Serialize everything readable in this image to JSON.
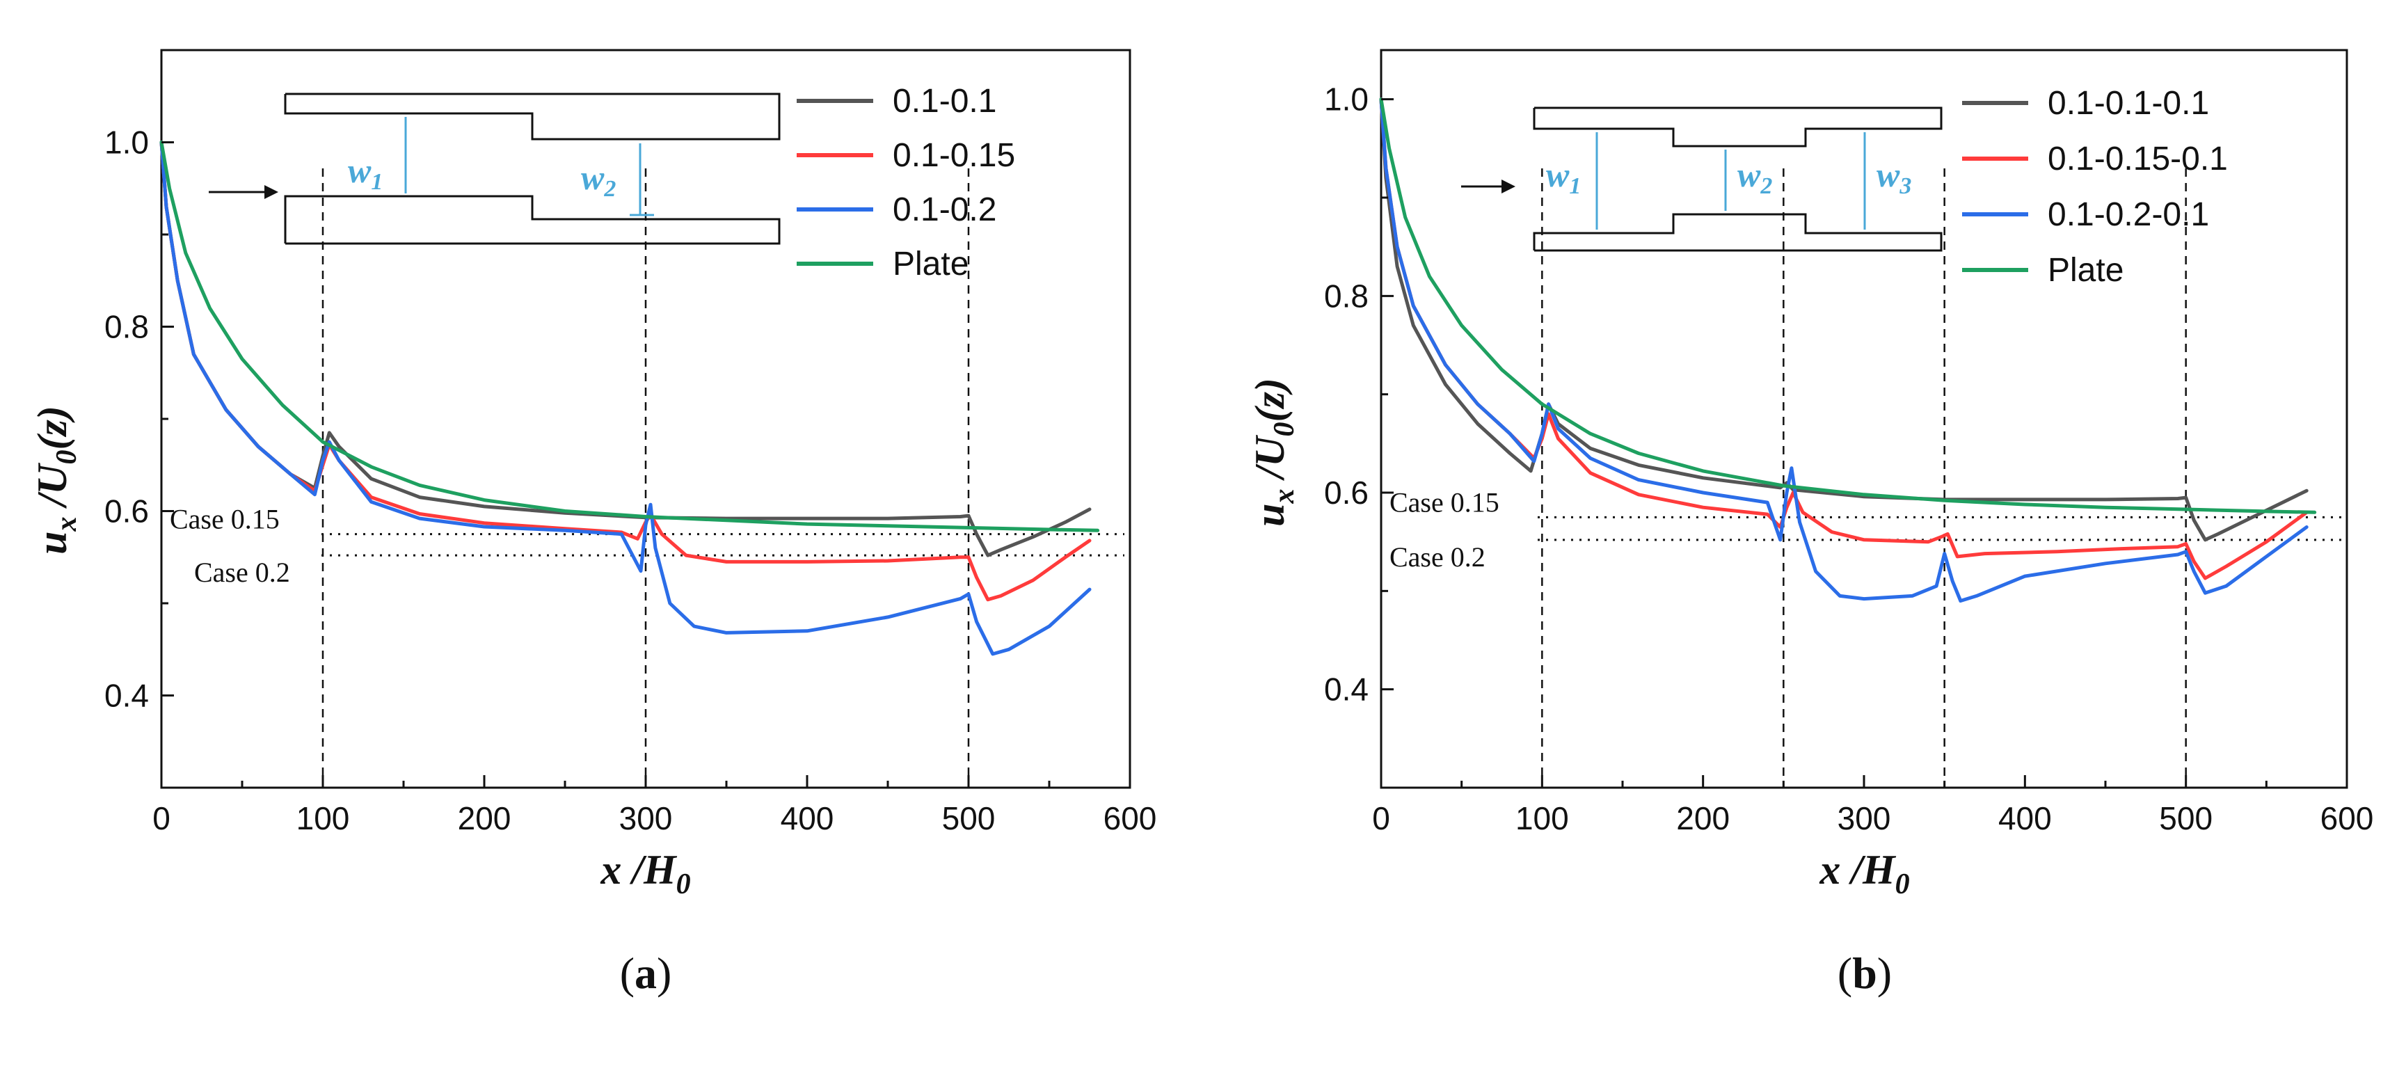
{
  "colors": {
    "gray": "#555555",
    "red": "#ff3b3b",
    "blue": "#2b6de8",
    "green": "#1ea060",
    "dim": "#4aa8d8"
  },
  "chart_data": [
    {
      "type": "line",
      "caption": {
        "open": "(",
        "letter": "a",
        "close": ")"
      },
      "xlabel": {
        "main": "x /H",
        "sub": "0"
      },
      "ylabel": {
        "main": "u",
        "sub1": "x",
        "mid": " /U",
        "sub2": "0",
        "tail": "(z)"
      },
      "xlim": [
        0,
        600
      ],
      "ylim": [
        0.3,
        1.1
      ],
      "xticks": [
        "0",
        "100",
        "200",
        "300",
        "400",
        "500",
        "600"
      ],
      "yticks": [
        "0.4",
        "0.6",
        "0.8",
        "1.0"
      ],
      "ytick_values": [
        0.4,
        0.6,
        0.8,
        1.0
      ],
      "xtick_values": [
        0,
        100,
        200,
        300,
        400,
        500,
        600
      ],
      "vlines": [
        100,
        300,
        500
      ],
      "hlines": [
        {
          "label": "Case 0.15",
          "y": 0.575
        },
        {
          "label": "Case 0.2",
          "y": 0.552
        }
      ],
      "inset": {
        "w1": "w",
        "w1sub": "1",
        "w2": "w",
        "w2sub": "2"
      },
      "series": [
        {
          "name": "0.1-0.1",
          "color": "gray",
          "points": [
            [
              0,
              1.0
            ],
            [
              3,
              0.93
            ],
            [
              10,
              0.85
            ],
            [
              20,
              0.77
            ],
            [
              40,
              0.71
            ],
            [
              60,
              0.67
            ],
            [
              80,
              0.64
            ],
            [
              95,
              0.625
            ],
            [
              100,
              0.66
            ],
            [
              104,
              0.685
            ],
            [
              110,
              0.67
            ],
            [
              130,
              0.635
            ],
            [
              160,
              0.615
            ],
            [
              200,
              0.605
            ],
            [
              250,
              0.598
            ],
            [
              290,
              0.594
            ],
            [
              300,
              0.593
            ],
            [
              350,
              0.592
            ],
            [
              400,
              0.592
            ],
            [
              450,
              0.592
            ],
            [
              495,
              0.594
            ],
            [
              500,
              0.595
            ],
            [
              505,
              0.575
            ],
            [
              512,
              0.552
            ],
            [
              520,
              0.558
            ],
            [
              540,
              0.572
            ],
            [
              560,
              0.588
            ],
            [
              575,
              0.602
            ]
          ]
        },
        {
          "name": "0.1-0.15",
          "color": "red",
          "points": [
            [
              0,
              1.0
            ],
            [
              3,
              0.93
            ],
            [
              10,
              0.85
            ],
            [
              20,
              0.77
            ],
            [
              40,
              0.71
            ],
            [
              60,
              0.67
            ],
            [
              80,
              0.64
            ],
            [
              95,
              0.622
            ],
            [
              100,
              0.65
            ],
            [
              104,
              0.672
            ],
            [
              110,
              0.655
            ],
            [
              130,
              0.615
            ],
            [
              160,
              0.597
            ],
            [
              200,
              0.587
            ],
            [
              250,
              0.581
            ],
            [
              285,
              0.577
            ],
            [
              295,
              0.57
            ],
            [
              300,
              0.588
            ],
            [
              303,
              0.596
            ],
            [
              310,
              0.575
            ],
            [
              325,
              0.552
            ],
            [
              350,
              0.545
            ],
            [
              400,
              0.545
            ],
            [
              450,
              0.546
            ],
            [
              495,
              0.55
            ],
            [
              500,
              0.55
            ],
            [
              505,
              0.528
            ],
            [
              512,
              0.504
            ],
            [
              520,
              0.508
            ],
            [
              540,
              0.525
            ],
            [
              560,
              0.55
            ],
            [
              575,
              0.568
            ]
          ]
        },
        {
          "name": "0.1-0.2",
          "color": "blue",
          "points": [
            [
              0,
              1.0
            ],
            [
              3,
              0.93
            ],
            [
              10,
              0.85
            ],
            [
              20,
              0.77
            ],
            [
              40,
              0.71
            ],
            [
              60,
              0.67
            ],
            [
              80,
              0.64
            ],
            [
              95,
              0.618
            ],
            [
              100,
              0.655
            ],
            [
              104,
              0.675
            ],
            [
              110,
              0.655
            ],
            [
              130,
              0.61
            ],
            [
              160,
              0.592
            ],
            [
              200,
              0.583
            ],
            [
              250,
              0.579
            ],
            [
              285,
              0.575
            ],
            [
              297,
              0.535
            ],
            [
              300,
              0.585
            ],
            [
              303,
              0.607
            ],
            [
              306,
              0.56
            ],
            [
              315,
              0.5
            ],
            [
              330,
              0.475
            ],
            [
              350,
              0.468
            ],
            [
              400,
              0.47
            ],
            [
              450,
              0.485
            ],
            [
              495,
              0.505
            ],
            [
              500,
              0.51
            ],
            [
              505,
              0.48
            ],
            [
              515,
              0.445
            ],
            [
              525,
              0.45
            ],
            [
              550,
              0.475
            ],
            [
              575,
              0.515
            ]
          ]
        },
        {
          "name": "Plate",
          "color": "green",
          "points": [
            [
              0,
              1.0
            ],
            [
              5,
              0.95
            ],
            [
              15,
              0.88
            ],
            [
              30,
              0.82
            ],
            [
              50,
              0.765
            ],
            [
              75,
              0.715
            ],
            [
              100,
              0.675
            ],
            [
              130,
              0.648
            ],
            [
              160,
              0.628
            ],
            [
              200,
              0.612
            ],
            [
              250,
              0.6
            ],
            [
              300,
              0.594
            ],
            [
              350,
              0.59
            ],
            [
              400,
              0.586
            ],
            [
              450,
              0.584
            ],
            [
              500,
              0.582
            ],
            [
              550,
              0.58
            ],
            [
              580,
              0.579
            ]
          ]
        }
      ]
    },
    {
      "type": "line",
      "caption": {
        "open": "(",
        "letter": "b",
        "close": ")"
      },
      "xlabel": {
        "main": "x /H",
        "sub": "0"
      },
      "ylabel": {
        "main": "u",
        "sub1": "x",
        "mid": " /U",
        "sub2": "0",
        "tail": "(z)"
      },
      "xlim": [
        0,
        600
      ],
      "ylim": [
        0.3,
        1.05
      ],
      "xticks": [
        "0",
        "100",
        "200",
        "300",
        "400",
        "500",
        "600"
      ],
      "yticks": [
        "0.4",
        "0.6",
        "0.8",
        "1.0"
      ],
      "ytick_values": [
        0.4,
        0.6,
        0.8,
        1.0
      ],
      "xtick_values": [
        0,
        100,
        200,
        300,
        400,
        500,
        600
      ],
      "vlines": [
        100,
        250,
        350,
        500
      ],
      "hlines": [
        {
          "label": "Case 0.15",
          "y": 0.575
        },
        {
          "label": "Case 0.2",
          "y": 0.552
        }
      ],
      "inset": {
        "w1": "w",
        "w1sub": "1",
        "w2": "w",
        "w2sub": "2",
        "w3": "w",
        "w3sub": "3"
      },
      "series": [
        {
          "name": "0.1-0.1-0.1",
          "color": "gray",
          "points": [
            [
              0,
              1.0
            ],
            [
              3,
              0.92
            ],
            [
              10,
              0.83
            ],
            [
              20,
              0.77
            ],
            [
              40,
              0.71
            ],
            [
              60,
              0.67
            ],
            [
              80,
              0.64
            ],
            [
              93,
              0.622
            ],
            [
              100,
              0.66
            ],
            [
              104,
              0.69
            ],
            [
              110,
              0.67
            ],
            [
              130,
              0.645
            ],
            [
              160,
              0.628
            ],
            [
              200,
              0.615
            ],
            [
              248,
              0.605
            ],
            [
              252,
              0.61
            ],
            [
              256,
              0.603
            ],
            [
              300,
              0.596
            ],
            [
              350,
              0.593
            ],
            [
              400,
              0.593
            ],
            [
              450,
              0.593
            ],
            [
              495,
              0.594
            ],
            [
              500,
              0.595
            ],
            [
              505,
              0.572
            ],
            [
              512,
              0.552
            ],
            [
              520,
              0.558
            ],
            [
              545,
              0.578
            ],
            [
              575,
              0.602
            ]
          ]
        },
        {
          "name": "0.1-0.15-0.1",
          "color": "red",
          "points": [
            [
              0,
              1.0
            ],
            [
              3,
              0.93
            ],
            [
              10,
              0.85
            ],
            [
              20,
              0.79
            ],
            [
              40,
              0.73
            ],
            [
              60,
              0.69
            ],
            [
              80,
              0.66
            ],
            [
              95,
              0.635
            ],
            [
              100,
              0.655
            ],
            [
              104,
              0.68
            ],
            [
              110,
              0.655
            ],
            [
              130,
              0.62
            ],
            [
              160,
              0.598
            ],
            [
              200,
              0.585
            ],
            [
              240,
              0.578
            ],
            [
              248,
              0.565
            ],
            [
              252,
              0.585
            ],
            [
              256,
              0.6
            ],
            [
              262,
              0.58
            ],
            [
              280,
              0.56
            ],
            [
              300,
              0.552
            ],
            [
              340,
              0.55
            ],
            [
              348,
              0.555
            ],
            [
              352,
              0.558
            ],
            [
              358,
              0.535
            ],
            [
              375,
              0.538
            ],
            [
              420,
              0.54
            ],
            [
              460,
              0.543
            ],
            [
              495,
              0.545
            ],
            [
              500,
              0.548
            ],
            [
              505,
              0.53
            ],
            [
              512,
              0.513
            ],
            [
              525,
              0.525
            ],
            [
              550,
              0.55
            ],
            [
              575,
              0.58
            ]
          ]
        },
        {
          "name": "0.1-0.2-0.1",
          "color": "blue",
          "points": [
            [
              0,
              1.0
            ],
            [
              3,
              0.93
            ],
            [
              10,
              0.85
            ],
            [
              20,
              0.79
            ],
            [
              40,
              0.73
            ],
            [
              60,
              0.69
            ],
            [
              80,
              0.66
            ],
            [
              95,
              0.632
            ],
            [
              100,
              0.66
            ],
            [
              104,
              0.69
            ],
            [
              110,
              0.665
            ],
            [
              130,
              0.635
            ],
            [
              160,
              0.613
            ],
            [
              200,
              0.6
            ],
            [
              240,
              0.59
            ],
            [
              248,
              0.552
            ],
            [
              252,
              0.6
            ],
            [
              255,
              0.625
            ],
            [
              260,
              0.57
            ],
            [
              270,
              0.52
            ],
            [
              285,
              0.495
            ],
            [
              300,
              0.492
            ],
            [
              330,
              0.495
            ],
            [
              345,
              0.505
            ],
            [
              350,
              0.538
            ],
            [
              355,
              0.51
            ],
            [
              360,
              0.49
            ],
            [
              370,
              0.495
            ],
            [
              400,
              0.515
            ],
            [
              450,
              0.528
            ],
            [
              495,
              0.537
            ],
            [
              500,
              0.54
            ],
            [
              505,
              0.52
            ],
            [
              512,
              0.498
            ],
            [
              525,
              0.505
            ],
            [
              550,
              0.535
            ],
            [
              575,
              0.565
            ]
          ]
        },
        {
          "name": "Plate",
          "color": "green",
          "points": [
            [
              0,
              1.0
            ],
            [
              5,
              0.95
            ],
            [
              15,
              0.88
            ],
            [
              30,
              0.82
            ],
            [
              50,
              0.77
            ],
            [
              75,
              0.725
            ],
            [
              100,
              0.69
            ],
            [
              130,
              0.66
            ],
            [
              160,
              0.64
            ],
            [
              200,
              0.622
            ],
            [
              250,
              0.607
            ],
            [
              300,
              0.598
            ],
            [
              350,
              0.592
            ],
            [
              400,
              0.588
            ],
            [
              450,
              0.585
            ],
            [
              500,
              0.583
            ],
            [
              550,
              0.581
            ],
            [
              580,
              0.58
            ]
          ]
        }
      ]
    }
  ]
}
